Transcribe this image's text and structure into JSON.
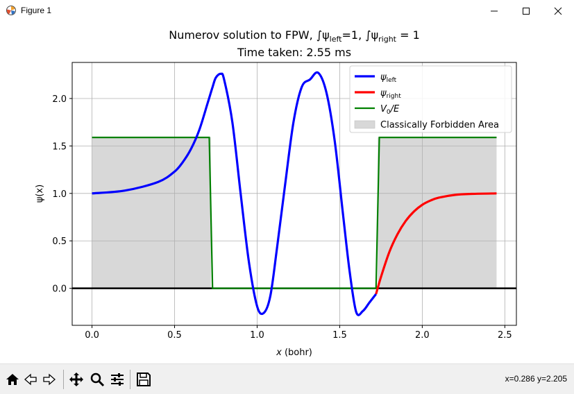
{
  "window": {
    "title": "Figure 1"
  },
  "toolbar": {
    "coords": "x=0.286 y=2.205"
  },
  "chart_data": {
    "type": "line",
    "title_line1": "Numerov solution to FPW, ∫ψ",
    "title_left_sub": "left",
    "title_mid": "=1, ∫ψ",
    "title_right_sub": "right",
    "title_end": " = 1",
    "title_line2": "Time taken: 2.55 ms",
    "xlabel_var": "x",
    "xlabel_unit": " (bohr)",
    "ylabel": "ψ(x)",
    "xlim": [
      -0.12,
      2.57
    ],
    "ylim": [
      -0.39,
      2.38
    ],
    "xticks": [
      0.0,
      0.5,
      1.0,
      1.5,
      2.0,
      2.5
    ],
    "xtick_labels": [
      "0.0",
      "0.5",
      "1.0",
      "1.5",
      "2.0",
      "2.5"
    ],
    "yticks": [
      0.0,
      0.5,
      1.0,
      1.5,
      2.0
    ],
    "ytick_labels": [
      "0.0",
      "0.5",
      "1.0",
      "1.5",
      "2.0"
    ],
    "grid": true,
    "legend_position": "upper right",
    "colors": {
      "psi_left": "#0000ff",
      "psi_right": "#ff0000",
      "potential": "#008000",
      "forbidden": "#d8d8d8",
      "axis_line": "#000000"
    },
    "series": [
      {
        "name": "ψleft",
        "label_main": "ψ",
        "label_sub": "left",
        "color": "#0000ff",
        "x": [
          0.0,
          0.2,
          0.4,
          0.5,
          0.55,
          0.6,
          0.65,
          0.7,
          0.73,
          0.75,
          0.78,
          0.8,
          0.85,
          0.9,
          0.95,
          1.0,
          1.04,
          1.08,
          1.12,
          1.17,
          1.22,
          1.27,
          1.32,
          1.37,
          1.42,
          1.47,
          1.52,
          1.56,
          1.6,
          1.64,
          1.68,
          1.72
        ],
        "y": [
          1.0,
          1.03,
          1.12,
          1.23,
          1.33,
          1.47,
          1.67,
          1.95,
          2.12,
          2.22,
          2.26,
          2.2,
          1.75,
          1.0,
          0.28,
          -0.19,
          -0.26,
          -0.08,
          0.42,
          1.1,
          1.75,
          2.12,
          2.2,
          2.27,
          2.06,
          1.55,
          0.78,
          0.18,
          -0.25,
          -0.24,
          -0.15,
          -0.06
        ]
      },
      {
        "name": "ψright",
        "label_main": "ψ",
        "label_sub": "right",
        "color": "#ff0000",
        "x": [
          1.72,
          1.75,
          1.8,
          1.85,
          1.9,
          1.95,
          2.0,
          2.05,
          2.1,
          2.2,
          2.3,
          2.45
        ],
        "y": [
          -0.06,
          0.12,
          0.38,
          0.57,
          0.71,
          0.81,
          0.88,
          0.925,
          0.955,
          0.985,
          0.995,
          1.0
        ]
      },
      {
        "name": "V0/E",
        "label_main": "V",
        "label_sub": "0",
        "label_end": "/E",
        "color": "#008000",
        "x": [
          0.0,
          0.71,
          0.73,
          1.72,
          1.74,
          2.45
        ],
        "y": [
          1.59,
          1.59,
          0.0,
          0.0,
          1.59,
          1.59
        ]
      }
    ],
    "forbidden_regions": [
      {
        "x": [
          0.0,
          0.72
        ],
        "y": [
          0.0,
          1.59
        ]
      },
      {
        "x": [
          1.73,
          2.45
        ],
        "y": [
          0.0,
          1.59
        ]
      }
    ],
    "legend": [
      {
        "key": "psi_left",
        "text_main": "ψ",
        "text_sub": "left"
      },
      {
        "key": "psi_right",
        "text_main": "ψ",
        "text_sub": "right"
      },
      {
        "key": "potential",
        "text_main": "V",
        "text_sub": "0",
        "text_end": "/E"
      },
      {
        "key": "forbidden",
        "text_main": "Classically Forbidden Area"
      }
    ]
  }
}
